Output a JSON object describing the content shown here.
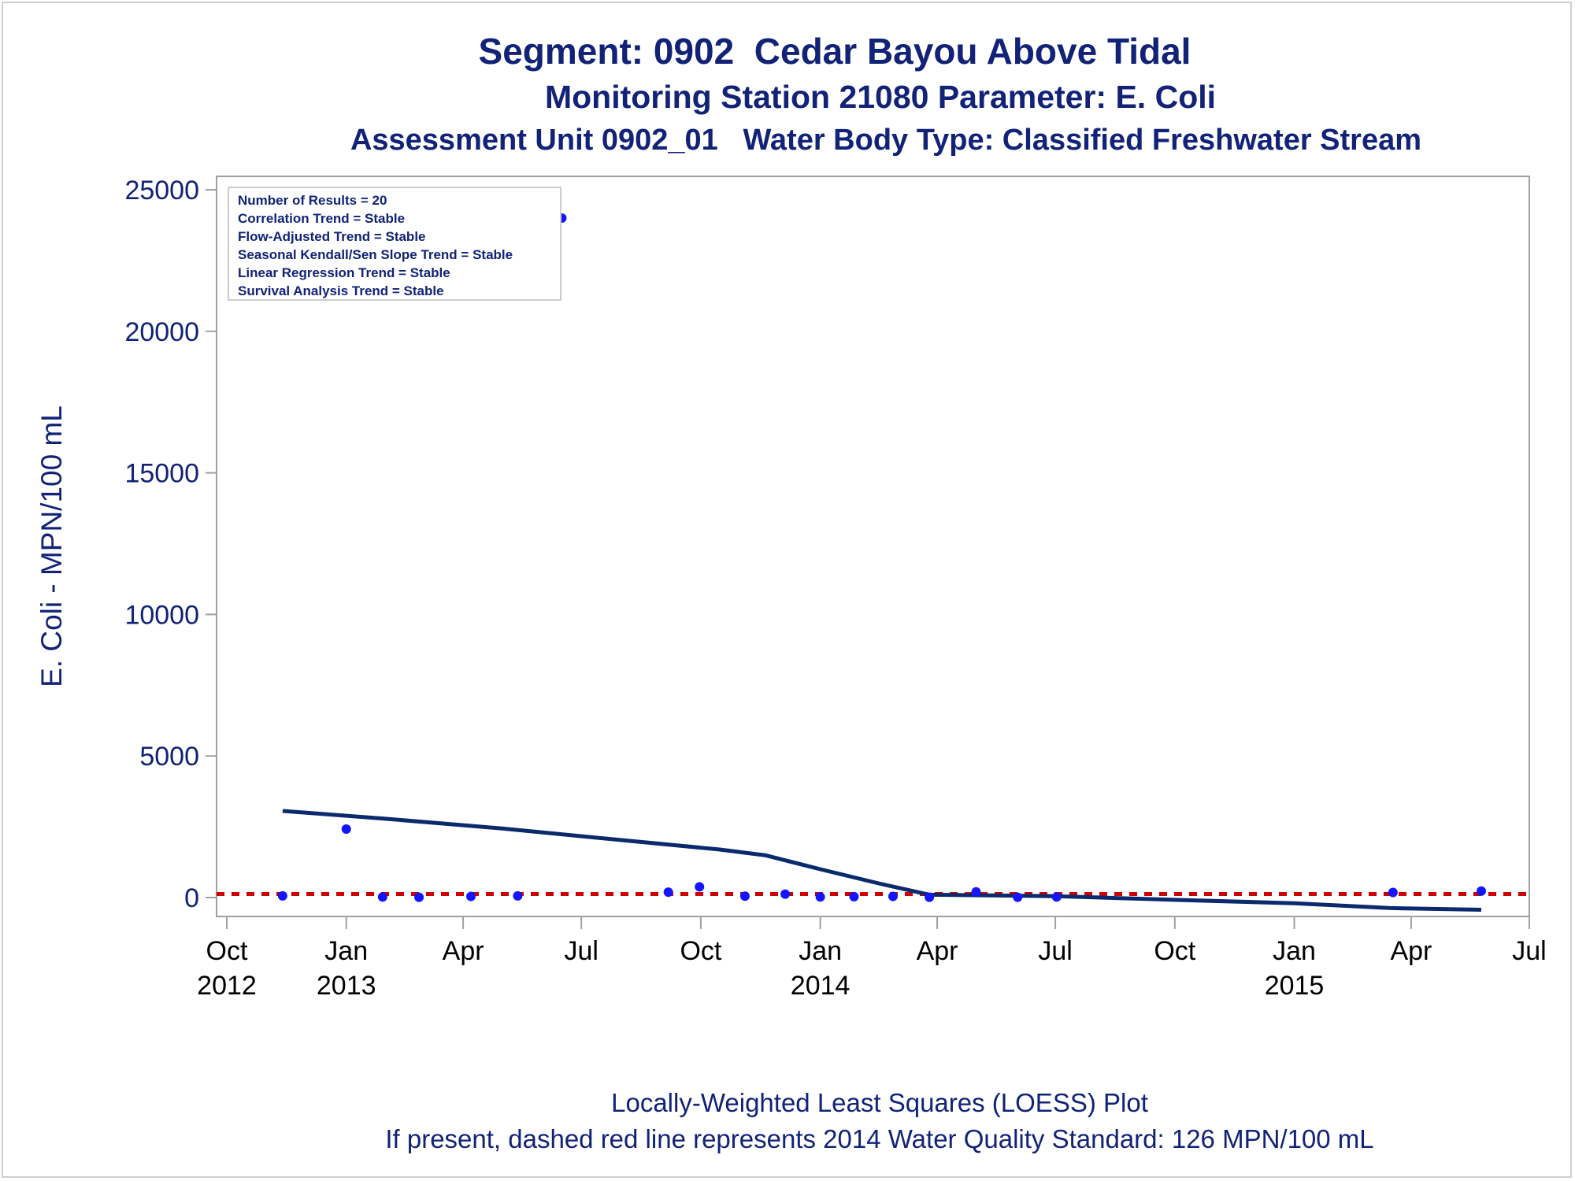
{
  "titles": {
    "line1": "Segment: 0902  Cedar Bayou Above Tidal",
    "line2": "Monitoring Station 21080 Parameter: E. Coli",
    "line3": "Assessment Unit 0902_01   Water Body Type: Classified Freshwater Stream"
  },
  "footnotes": {
    "line1": "Locally-Weighted Least Squares (LOESS) Plot",
    "line2": "If present, dashed red line represents 2014 Water Quality Standard: 126 MPN/100 mL"
  },
  "colors": {
    "text": "#112277",
    "points": "#1414ff",
    "loess": "#0b2a6e",
    "standard": "#cc0000",
    "frame": "#a0a0a0"
  },
  "chart_data": {
    "type": "scatter",
    "ylabel": "E. Coli - MPN/100 mL",
    "xlabel": "",
    "ylim": [
      0,
      25000
    ],
    "y_ticks": [
      0,
      5000,
      10000,
      15000,
      20000,
      25000
    ],
    "x_range": [
      "2012-10-01",
      "2015-07-01"
    ],
    "x_ticks": [
      {
        "date": "2012-10-01",
        "label": "Oct",
        "year": "2012"
      },
      {
        "date": "2013-01-01",
        "label": "Jan",
        "year": "2013"
      },
      {
        "date": "2013-04-01",
        "label": "Apr",
        "year": ""
      },
      {
        "date": "2013-07-01",
        "label": "Jul",
        "year": ""
      },
      {
        "date": "2013-10-01",
        "label": "Oct",
        "year": ""
      },
      {
        "date": "2014-01-01",
        "label": "Jan",
        "year": "2014"
      },
      {
        "date": "2014-04-01",
        "label": "Apr",
        "year": ""
      },
      {
        "date": "2014-07-01",
        "label": "Jul",
        "year": ""
      },
      {
        "date": "2014-10-01",
        "label": "Oct",
        "year": ""
      },
      {
        "date": "2015-01-01",
        "label": "Jan",
        "year": "2015"
      },
      {
        "date": "2015-04-01",
        "label": "Apr",
        "year": ""
      },
      {
        "date": "2015-07-01",
        "label": "Jul",
        "year": ""
      }
    ],
    "legend_position": "top-left",
    "legend_lines": [
      "Number of Results = 20",
      "Correlation Trend = Stable",
      "Flow-Adjusted Trend = Stable",
      "Seasonal Kendall/Sen Slope Trend = Stable",
      "Linear Regression Trend = Stable",
      "Survival Analysis Trend = Stable"
    ],
    "points": [
      {
        "x": "2012-11-13",
        "y": 60
      },
      {
        "x": "2013-01-01",
        "y": 2420
      },
      {
        "x": "2013-01-29",
        "y": 20
      },
      {
        "x": "2013-02-26",
        "y": 10
      },
      {
        "x": "2013-04-07",
        "y": 40
      },
      {
        "x": "2013-05-13",
        "y": 60
      },
      {
        "x": "2013-06-16",
        "y": 24000
      },
      {
        "x": "2013-09-06",
        "y": 190
      },
      {
        "x": "2013-09-30",
        "y": 380
      },
      {
        "x": "2013-11-04",
        "y": 50
      },
      {
        "x": "2013-12-05",
        "y": 120
      },
      {
        "x": "2014-01-01",
        "y": 20
      },
      {
        "x": "2014-01-27",
        "y": 30
      },
      {
        "x": "2014-02-26",
        "y": 40
      },
      {
        "x": "2014-03-26",
        "y": 10
      },
      {
        "x": "2014-05-01",
        "y": 200
      },
      {
        "x": "2014-06-02",
        "y": 10
      },
      {
        "x": "2014-07-02",
        "y": 20
      },
      {
        "x": "2015-03-18",
        "y": 180
      },
      {
        "x": "2015-05-25",
        "y": 230
      }
    ],
    "loess": [
      {
        "x": "2012-11-13",
        "y": 3060
      },
      {
        "x": "2013-02-01",
        "y": 2780
      },
      {
        "x": "2013-05-01",
        "y": 2440
      },
      {
        "x": "2013-08-01",
        "y": 2030
      },
      {
        "x": "2013-10-15",
        "y": 1700
      },
      {
        "x": "2013-11-20",
        "y": 1490
      },
      {
        "x": "2014-01-01",
        "y": 1000
      },
      {
        "x": "2014-02-15",
        "y": 500
      },
      {
        "x": "2014-03-26",
        "y": 100
      },
      {
        "x": "2014-07-01",
        "y": 50
      },
      {
        "x": "2014-10-01",
        "y": -80
      },
      {
        "x": "2015-01-01",
        "y": -200
      },
      {
        "x": "2015-03-15",
        "y": -370
      },
      {
        "x": "2015-05-25",
        "y": -430
      }
    ],
    "reference_line": {
      "y": 126,
      "style": "dashed"
    }
  }
}
